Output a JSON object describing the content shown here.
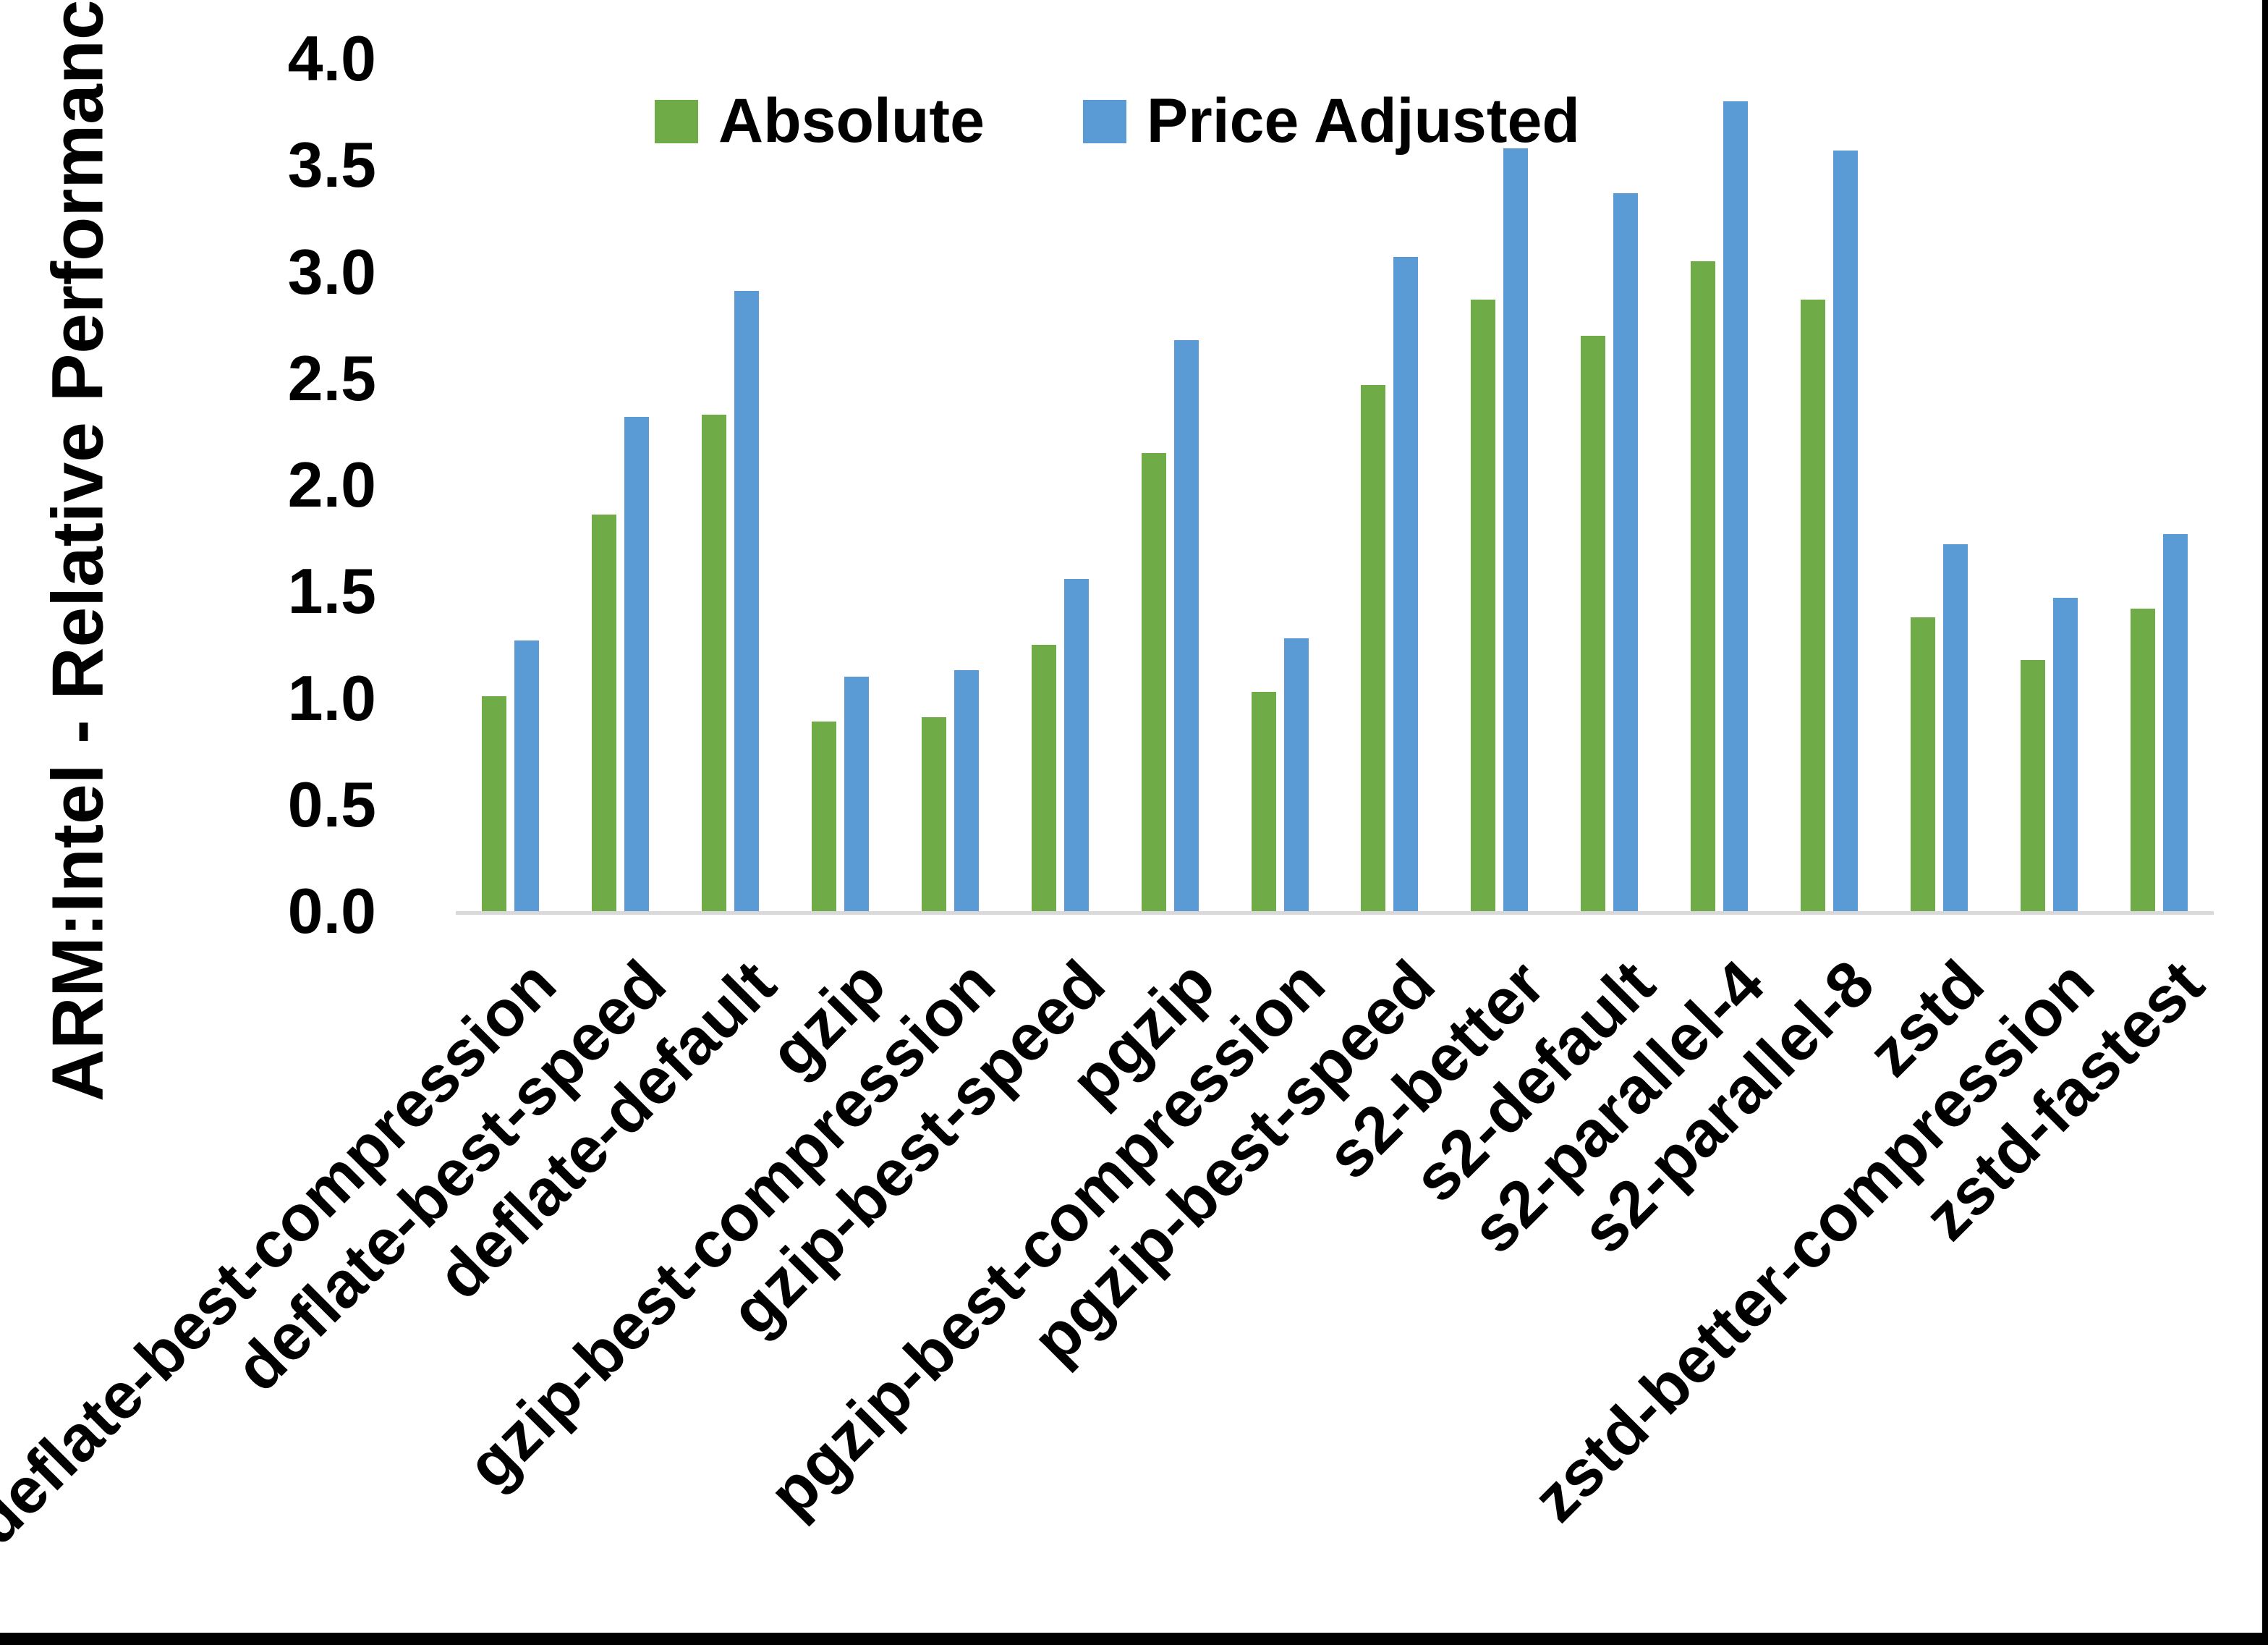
{
  "chart_data": {
    "type": "bar",
    "title": "",
    "xlabel": "",
    "ylabel": "ARM:Intel - Relative Performance",
    "ylim": [
      0.0,
      4.0
    ],
    "ytick_step": 0.5,
    "yticks": [
      "4.0",
      "3.5",
      "3.0",
      "2.5",
      "2.0",
      "1.5",
      "1.0",
      "0.5",
      "0.0"
    ],
    "grid": false,
    "legend_position": "top-center",
    "background_color": "#ffffff",
    "text_color": "#000000",
    "axis_line_color": "#d9d9d9",
    "frame_border_color": "#000000",
    "categories": [
      "deflate-best-compression",
      "deflate-best-speed",
      "deflate-default",
      "gzip",
      "gzip-best-compression",
      "gzip-best-speed",
      "pgzip",
      "pgzip-best-compression",
      "pgzip-best-speed",
      "s2-better",
      "s2-default",
      "s2-parallel-4",
      "s2-parallel-8",
      "zstd",
      "zstd-better-compression",
      "zstd-fastest"
    ],
    "series": [
      {
        "name": "Absolute",
        "color": "#6fac47",
        "values": [
          1.01,
          1.86,
          2.33,
          0.89,
          0.91,
          1.25,
          2.15,
          1.03,
          2.47,
          2.87,
          2.7,
          3.05,
          2.87,
          1.38,
          1.18,
          1.42
        ]
      },
      {
        "name": "Price Adjusted",
        "color": "#5b9bd5",
        "values": [
          1.27,
          2.32,
          2.91,
          1.1,
          1.13,
          1.56,
          2.68,
          1.28,
          3.07,
          3.58,
          3.37,
          3.8,
          3.57,
          1.72,
          1.47,
          1.77
        ]
      }
    ]
  }
}
